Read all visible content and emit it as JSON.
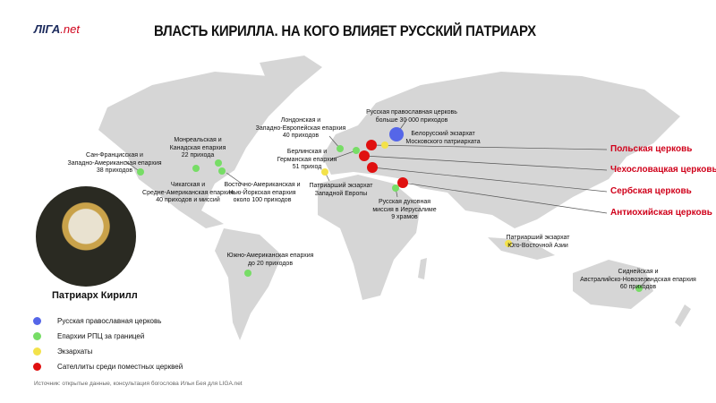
{
  "header": {
    "logo_text": "ЛIГА",
    "logo_suffix": ".net",
    "title": "ВЛАСТЬ КИРИЛЛА. НА КОГО ВЛИЯЕТ РУССКИЙ ПАТРИАРХ"
  },
  "colors": {
    "russian_church": "#5566e8",
    "diocese": "#77dd66",
    "exarchate": "#f3e24a",
    "satellite": "#e01010",
    "red_label": "#d0021b",
    "land": "#d6d6d6"
  },
  "labels": {
    "sf": "Сан-Францисская и\nЗападно-Американская епархия\n38 приходов",
    "montreal": "Монреальская и\nКанадская епархия\n22 прихода",
    "chicago": "Чикагская и\nСредне-Американская епархия\n40 приходов и миссий",
    "ny": "Восточно-Американская и\nНью-Йоркская епархия\nоколо 100 приходов",
    "london": "Лондонская и\nЗападно-Европейская епархия\n40 приходов",
    "berlin": "Берлинская и\nГерманская епархия\n51 приход",
    "west_europe": "Патриарший экзархат\nЗападной Европы",
    "russia": "Русская православная церковь\nбольше 30 000 приходов",
    "belarus": "Белорусский экзархат\nМосковского патриархата",
    "jerusalem": "Русская духовная\nмиссия в Иерусалиме\n9 храмов",
    "sea": "Патриарший экзархат\nЮго-Восточной Азии",
    "south_america": "Южно-Американская епархия\nдо 20 приходов",
    "sydney": "Сиднейская и\nАвстралийско-Новозеландская епархия\n60 приходов"
  },
  "satellites": [
    "Польская церковь",
    "Чехословацкая церковь",
    "Сербская церковь",
    "Антиохийская церковь"
  ],
  "portrait": {
    "name": "Патриарх Кирилл"
  },
  "legend": [
    {
      "label": "Русская православная церковь",
      "color": "#5566e8"
    },
    {
      "label": "Епархии РПЦ за границей",
      "color": "#77dd66"
    },
    {
      "label": "Экзархаты",
      "color": "#f3e24a"
    },
    {
      "label": "Сателлиты среди поместных церквей",
      "color": "#e01010"
    }
  ],
  "source": "Источник: открытые данные, консультация богослова Ильи Бея для LIGA.net"
}
